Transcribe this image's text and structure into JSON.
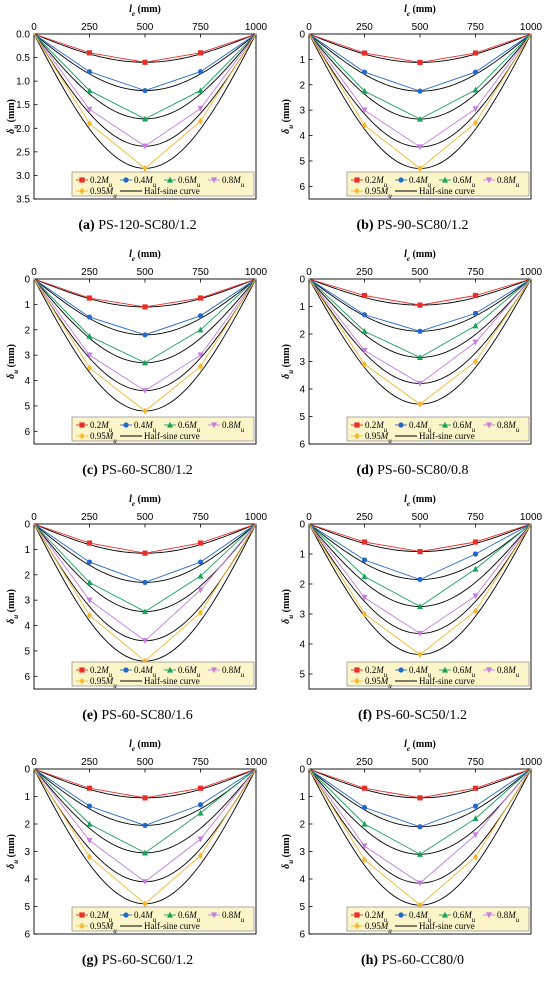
{
  "legend": {
    "entries": [
      "0.2",
      "0.4",
      "0.6",
      "0.8",
      "0.95",
      "Half-sine curve"
    ],
    "moment_symbol": "M",
    "moment_subscript": "u"
  },
  "axes": {
    "x_symbol": "l",
    "x_subscript": "e",
    "x_unit": " (mm)",
    "y_symbol": "δ",
    "y_subscript": "u",
    "y_unit": " (mm)"
  },
  "colors": {
    "s02": "#e8302a",
    "s04": "#2469c9",
    "s06": "#19a35a",
    "s08": "#c77ee0",
    "s095": "#f5b82e",
    "half_sine": "#000000",
    "legend_bg": "#fbf5c9"
  },
  "chart_data": [
    {
      "type": "line",
      "label": "(a)",
      "name": "PS-120-SC80/1.2",
      "x": [
        0,
        250,
        500,
        750,
        1000
      ],
      "xlim": [
        0,
        1000
      ],
      "xticks": [
        0,
        250,
        500,
        750,
        1000
      ],
      "ylim": [
        0,
        3.5
      ],
      "yticks": [
        "0.0",
        "0.5",
        "1.0",
        "1.5",
        "2.0",
        "2.5",
        "3.0",
        "3.5"
      ],
      "series": [
        {
          "values": [
            0,
            0.4,
            0.6,
            0.4,
            0
          ]
        },
        {
          "values": [
            0,
            0.8,
            1.2,
            0.8,
            0
          ]
        },
        {
          "values": [
            0,
            1.2,
            1.8,
            1.2,
            0
          ]
        },
        {
          "values": [
            0,
            1.6,
            2.38,
            1.58,
            0
          ]
        },
        {
          "values": [
            0,
            1.9,
            2.85,
            1.85,
            0
          ]
        }
      ],
      "half_sine_peaks": [
        0.6,
        1.2,
        1.8,
        2.38,
        2.85
      ]
    },
    {
      "type": "line",
      "label": "(b)",
      "name": "PS-90-SC80/1.2",
      "x": [
        0,
        250,
        500,
        750,
        1000
      ],
      "xlim": [
        0,
        1000
      ],
      "xticks": [
        0,
        250,
        500,
        750,
        1000
      ],
      "ylim": [
        0,
        6.5
      ],
      "yticks": [
        "0",
        "1",
        "2",
        "3",
        "4",
        "5",
        "6"
      ],
      "series": [
        {
          "values": [
            0,
            0.75,
            1.12,
            0.75,
            0
          ]
        },
        {
          "values": [
            0,
            1.5,
            2.25,
            1.5,
            0
          ]
        },
        {
          "values": [
            0,
            2.25,
            3.35,
            2.2,
            0
          ]
        },
        {
          "values": [
            0,
            3.0,
            4.45,
            2.95,
            0
          ]
        },
        {
          "values": [
            0,
            3.6,
            5.3,
            3.5,
            0
          ]
        }
      ],
      "half_sine_peaks": [
        1.12,
        2.25,
        3.35,
        4.45,
        5.3
      ]
    },
    {
      "type": "line",
      "label": "(c)",
      "name": "PS-60-SC80/1.2",
      "x": [
        0,
        250,
        500,
        750,
        1000
      ],
      "xlim": [
        0,
        1000
      ],
      "xticks": [
        0,
        250,
        500,
        750,
        1000
      ],
      "ylim": [
        0,
        6.5
      ],
      "yticks": [
        "0",
        "1",
        "2",
        "3",
        "4",
        "5",
        "6"
      ],
      "series": [
        {
          "values": [
            0,
            0.75,
            1.1,
            0.75,
            0
          ]
        },
        {
          "values": [
            0,
            1.5,
            2.2,
            1.45,
            0
          ]
        },
        {
          "values": [
            0,
            2.25,
            3.3,
            2.0,
            0
          ]
        },
        {
          "values": [
            0,
            3.0,
            4.4,
            3.0,
            0
          ]
        },
        {
          "values": [
            0,
            3.5,
            5.2,
            3.45,
            0
          ]
        }
      ],
      "half_sine_peaks": [
        1.1,
        2.2,
        3.3,
        4.4,
        5.2
      ]
    },
    {
      "type": "line",
      "label": "(d)",
      "name": "PS-60-SC80/0.8",
      "x": [
        0,
        250,
        500,
        750,
        1000
      ],
      "xlim": [
        0,
        1000
      ],
      "xticks": [
        0,
        250,
        500,
        750,
        1000
      ],
      "ylim": [
        0,
        6
      ],
      "yticks": [
        "0",
        "1",
        "2",
        "3",
        "4",
        "5",
        "6"
      ],
      "series": [
        {
          "values": [
            0,
            0.6,
            0.95,
            0.6,
            0
          ]
        },
        {
          "values": [
            0,
            1.3,
            1.9,
            1.25,
            0
          ]
        },
        {
          "values": [
            0,
            1.9,
            2.85,
            1.7,
            0
          ]
        },
        {
          "values": [
            0,
            2.6,
            3.8,
            2.3,
            0
          ]
        },
        {
          "values": [
            0,
            3.1,
            4.55,
            3.0,
            0
          ]
        }
      ],
      "half_sine_peaks": [
        0.95,
        1.9,
        2.85,
        3.8,
        4.55
      ]
    },
    {
      "type": "line",
      "label": "(e)",
      "name": "PS-60-SC80/1.6",
      "x": [
        0,
        250,
        500,
        750,
        1000
      ],
      "xlim": [
        0,
        1000
      ],
      "xticks": [
        0,
        250,
        500,
        750,
        1000
      ],
      "ylim": [
        0,
        6.5
      ],
      "yticks": [
        "0",
        "1",
        "2",
        "3",
        "4",
        "5",
        "6"
      ],
      "series": [
        {
          "values": [
            0,
            0.75,
            1.15,
            0.75,
            0
          ]
        },
        {
          "values": [
            0,
            1.5,
            2.3,
            1.5,
            0
          ]
        },
        {
          "values": [
            0,
            2.3,
            3.45,
            2.05,
            0
          ]
        },
        {
          "values": [
            0,
            3.0,
            4.6,
            2.6,
            0
          ]
        },
        {
          "values": [
            0,
            3.6,
            5.4,
            3.5,
            0
          ]
        }
      ],
      "half_sine_peaks": [
        1.15,
        2.3,
        3.45,
        4.6,
        5.4
      ]
    },
    {
      "type": "line",
      "label": "(f)",
      "name": "PS-60-SC50/1.2",
      "x": [
        0,
        250,
        500,
        750,
        1000
      ],
      "xlim": [
        0,
        1000
      ],
      "xticks": [
        0,
        250,
        500,
        750,
        1000
      ],
      "ylim": [
        0,
        5.5
      ],
      "yticks": [
        "0",
        "1",
        "2",
        "3",
        "4",
        "5"
      ],
      "series": [
        {
          "values": [
            0,
            0.6,
            0.92,
            0.6,
            0
          ]
        },
        {
          "values": [
            0,
            1.2,
            1.85,
            1.0,
            0
          ]
        },
        {
          "values": [
            0,
            1.75,
            2.75,
            1.5,
            0
          ]
        },
        {
          "values": [
            0,
            2.45,
            3.65,
            2.4,
            0
          ]
        },
        {
          "values": [
            0,
            3.0,
            4.35,
            2.9,
            0
          ]
        }
      ],
      "half_sine_peaks": [
        0.92,
        1.85,
        2.75,
        3.65,
        4.35
      ]
    },
    {
      "type": "line",
      "label": "(g)",
      "name": "PS-60-SC60/1.2",
      "x": [
        0,
        250,
        500,
        750,
        1000
      ],
      "xlim": [
        0,
        1000
      ],
      "xticks": [
        0,
        250,
        500,
        750,
        1000
      ],
      "ylim": [
        0,
        6
      ],
      "yticks": [
        "0",
        "1",
        "2",
        "3",
        "4",
        "5",
        "6"
      ],
      "series": [
        {
          "values": [
            0,
            0.7,
            1.05,
            0.7,
            0
          ]
        },
        {
          "values": [
            0,
            1.35,
            2.05,
            1.3,
            0
          ]
        },
        {
          "values": [
            0,
            2.0,
            3.05,
            1.6,
            0
          ]
        },
        {
          "values": [
            0,
            2.6,
            4.1,
            2.55,
            0
          ]
        },
        {
          "values": [
            0,
            3.2,
            4.9,
            3.15,
            0
          ]
        }
      ],
      "half_sine_peaks": [
        1.05,
        2.05,
        3.05,
        4.1,
        4.9
      ]
    },
    {
      "type": "line",
      "label": "(h)",
      "name": "PS-60-CC80/0",
      "x": [
        0,
        250,
        500,
        750,
        1000
      ],
      "xlim": [
        0,
        1000
      ],
      "xticks": [
        0,
        250,
        500,
        750,
        1000
      ],
      "ylim": [
        0,
        6
      ],
      "yticks": [
        "0",
        "1",
        "2",
        "3",
        "4",
        "5",
        "6"
      ],
      "series": [
        {
          "values": [
            0,
            0.7,
            1.05,
            0.7,
            0
          ]
        },
        {
          "values": [
            0,
            1.4,
            2.1,
            1.35,
            0
          ]
        },
        {
          "values": [
            0,
            2.0,
            3.1,
            1.8,
            0
          ]
        },
        {
          "values": [
            0,
            2.8,
            4.15,
            2.4,
            0
          ]
        },
        {
          "values": [
            0,
            3.3,
            4.95,
            3.2,
            0
          ]
        }
      ],
      "half_sine_peaks": [
        1.05,
        2.1,
        3.1,
        4.15,
        4.95
      ]
    }
  ]
}
